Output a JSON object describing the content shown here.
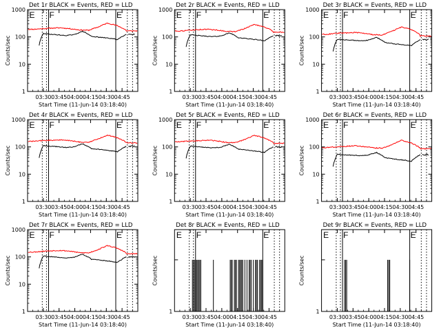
{
  "chart_data": [
    {
      "type": "line",
      "title": "Det 1r BLACK = Events, RED = LLD",
      "ylabel": "Counts/sec",
      "xlabel": "Start Time (11-Jun-14 03:18:40)",
      "yscale": "log",
      "ylim": [
        1,
        1000
      ],
      "xlim": [
        195,
        300
      ],
      "x_ticks": [
        "03:30",
        "03:45",
        "04:00",
        "04:15",
        "04:30",
        "04:45"
      ],
      "y_ticks": [
        "1",
        "10",
        "100",
        "1000"
      ],
      "markers": [
        {
          "label": "E",
          "x": 196
        },
        {
          "label": "F",
          "x": 215
        },
        {
          "label": "E",
          "x": 279
        }
      ],
      "black_start": 212,
      "black_base": [
        140,
        128,
        120,
        112,
        120,
        160,
        105,
        96,
        90,
        80,
        125
      ],
      "red_base": [
        190,
        200,
        210,
        215,
        200,
        180,
        175,
        230,
        320,
        260,
        175
      ],
      "black_end": 289,
      "red_end": 166
    },
    {
      "type": "line",
      "title": "Det 2r BLACK = Events, RED = LLD",
      "ylabel": "Counts/sec",
      "xlabel": "Start Time (11-Jun-14 03:18:40)",
      "yscale": "log",
      "ylim": [
        1,
        1000
      ],
      "xlim": [
        195,
        300
      ],
      "x_ticks": [
        "03:30",
        "03:45",
        "04:00",
        "04:15",
        "04:30",
        "04:45"
      ],
      "y_ticks": [
        "1",
        "10",
        "100",
        "1000"
      ],
      "markers": [
        {
          "label": "E",
          "x": 196
        },
        {
          "label": "F",
          "x": 215
        },
        {
          "label": "E",
          "x": 279
        }
      ],
      "black_start": 212,
      "black_base": [
        125,
        115,
        108,
        102,
        108,
        140,
        93,
        86,
        80,
        72,
        110
      ],
      "red_base": [
        165,
        175,
        185,
        190,
        178,
        160,
        155,
        205,
        285,
        235,
        160
      ],
      "black_end": 289,
      "red_end": 150
    },
    {
      "type": "line",
      "title": "Det 3r BLACK = Events, RED = LLD",
      "ylabel": "Counts/sec",
      "xlabel": "Start Time (11-Jun-14 03:18:40)",
      "yscale": "log",
      "ylim": [
        1,
        1000
      ],
      "xlim": [
        195,
        300
      ],
      "x_ticks": [
        "03:30",
        "03:45",
        "04:00",
        "04:15",
        "04:30",
        "04:45"
      ],
      "y_ticks": [
        "1",
        "10",
        "100",
        "1000"
      ],
      "markers": [
        {
          "label": "E",
          "x": 196
        },
        {
          "label": "F",
          "x": 215
        },
        {
          "label": "E",
          "x": 279
        }
      ],
      "black_start": 212,
      "black_base": [
        85,
        80,
        76,
        72,
        75,
        95,
        62,
        56,
        52,
        48,
        80
      ],
      "red_base": [
        125,
        135,
        140,
        145,
        135,
        120,
        118,
        160,
        230,
        190,
        120
      ],
      "black_end": 289,
      "red_end": 108
    },
    {
      "type": "line",
      "title": "Det 4r BLACK = Events, RED = LLD",
      "ylabel": "Counts/sec",
      "xlabel": "Start Time (11-Jun-14 03:18:40)",
      "yscale": "log",
      "ylim": [
        1,
        1000
      ],
      "xlim": [
        195,
        300
      ],
      "x_ticks": [
        "03:30",
        "03:45",
        "04:00",
        "04:15",
        "04:30",
        "04:45"
      ],
      "y_ticks": [
        "1",
        "10",
        "100",
        "1000"
      ],
      "markers": [
        {
          "label": "E",
          "x": 196
        },
        {
          "label": "F",
          "x": 215
        },
        {
          "label": "E",
          "x": 279
        }
      ],
      "black_start": 212,
      "black_base": [
        115,
        108,
        102,
        96,
        100,
        130,
        86,
        80,
        74,
        66,
        105
      ],
      "red_base": [
        160,
        170,
        175,
        180,
        170,
        150,
        148,
        195,
        270,
        220,
        150
      ],
      "black_end": 289,
      "red_end": 140
    },
    {
      "type": "line",
      "title": "Det 5r BLACK = Events, RED = LLD",
      "ylabel": "Counts/sec",
      "xlabel": "Start Time (11-Jun-14 03:18:40)",
      "yscale": "log",
      "ylim": [
        1,
        1000
      ],
      "xlim": [
        195,
        300
      ],
      "x_ticks": [
        "03:30",
        "03:45",
        "04:00",
        "04:15",
        "04:30",
        "04:45"
      ],
      "y_ticks": [
        "1",
        "10",
        "100",
        "1000"
      ],
      "markers": [
        {
          "label": "E",
          "x": 196
        },
        {
          "label": "F",
          "x": 215
        },
        {
          "label": "E",
          "x": 279
        }
      ],
      "black_start": 212,
      "black_base": [
        110,
        104,
        98,
        92,
        97,
        125,
        82,
        76,
        70,
        63,
        100
      ],
      "red_base": [
        155,
        165,
        170,
        175,
        165,
        145,
        143,
        190,
        265,
        215,
        145
      ],
      "black_end": 289,
      "red_end": 135
    },
    {
      "type": "line",
      "title": "Det 6r BLACK = Events, RED = LLD",
      "ylabel": "Counts/sec",
      "xlabel": "Start Time (11-Jun-14 03:18:40)",
      "yscale": "log",
      "ylim": [
        1,
        1000
      ],
      "xlim": [
        195,
        300
      ],
      "x_ticks": [
        "03:30",
        "03:45",
        "04:00",
        "04:15",
        "04:30",
        "04:45"
      ],
      "y_ticks": [
        "1",
        "10",
        "100",
        "1000"
      ],
      "markers": [
        {
          "label": "E",
          "x": 196
        },
        {
          "label": "F",
          "x": 215
        },
        {
          "label": "E",
          "x": 279
        }
      ],
      "black_start": 212,
      "black_base": [
        55,
        52,
        50,
        48,
        50,
        62,
        40,
        36,
        33,
        30,
        52
      ],
      "red_base": [
        95,
        100,
        105,
        110,
        102,
        92,
        90,
        120,
        175,
        140,
        92
      ],
      "black_end": 289,
      "red_end": 85
    },
    {
      "type": "line",
      "title": "Det 7r BLACK = Events, RED = LLD",
      "ylabel": "Counts/sec",
      "xlabel": "Start Time (11-Jun-14 03:18:40)",
      "yscale": "log",
      "ylim": [
        1,
        1000
      ],
      "xlim": [
        195,
        300
      ],
      "x_ticks": [
        "03:30",
        "03:45",
        "04:00",
        "04:15",
        "04:30",
        "04:45"
      ],
      "y_ticks": [
        "1",
        "10",
        "100",
        "1000"
      ],
      "markers": [
        {
          "label": "E",
          "x": 196
        },
        {
          "label": "F",
          "x": 215
        },
        {
          "label": "E",
          "x": 279
        }
      ],
      "black_start": 212,
      "black_base": [
        110,
        104,
        98,
        92,
        97,
        125,
        82,
        76,
        70,
        63,
        100
      ],
      "red_base": [
        150,
        160,
        168,
        172,
        162,
        142,
        140,
        185,
        260,
        210,
        140
      ],
      "black_end": 289,
      "red_end": 130
    },
    {
      "type": "line",
      "title": "Det 8r BLACK = Events, RED = LLD",
      "ylabel": "Counts/sec",
      "xlabel": "Start Time (11-Jun-14 03:18:40)",
      "yscale": "log",
      "ylim": [
        1,
        3
      ],
      "xlim": [
        195,
        300
      ],
      "x_ticks": [
        "03:30",
        "03:45",
        "04:00",
        "04:15",
        "04:30",
        "04:45"
      ],
      "y_ticks": [],
      "markers": [
        {
          "label": "E",
          "x": 196
        },
        {
          "label": "F",
          "x": 215
        },
        {
          "label": "E",
          "x": 279
        }
      ],
      "spikes": [
        212,
        213,
        214,
        215,
        216,
        217,
        218,
        219,
        220,
        232,
        248,
        249,
        250,
        252,
        253,
        254,
        256,
        257,
        258,
        259,
        260,
        262,
        264,
        266,
        267,
        268,
        270,
        272,
        273,
        274,
        276,
        277,
        278,
        279
      ]
    },
    {
      "type": "line",
      "title": "Det 9r BLACK = Events, RED = LLD",
      "ylabel": "Counts/sec",
      "xlabel": "Start Time (11-Jun-14 03:18:40)",
      "yscale": "log",
      "ylim": [
        1,
        3
      ],
      "xlim": [
        195,
        300
      ],
      "x_ticks": [
        "03:30",
        "03:45",
        "04:00",
        "04:15",
        "04:30",
        "04:45"
      ],
      "y_ticks": [],
      "markers": [
        {
          "label": "E",
          "x": 196
        },
        {
          "label": "F",
          "x": 215
        },
        {
          "label": "E",
          "x": 279
        }
      ],
      "spikes": [
        217,
        218,
        219,
        258,
        259,
        260,
        279
      ]
    }
  ]
}
